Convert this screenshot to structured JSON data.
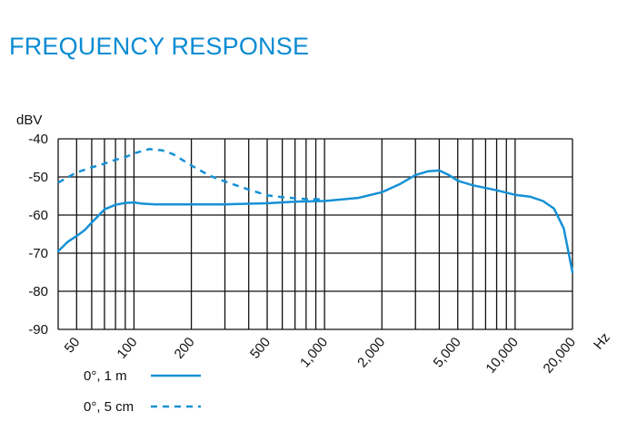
{
  "chart_data": {
    "type": "line",
    "title": "FREQUENCY RESPONSE",
    "ylabel": "dBV",
    "xlabel": "Hz",
    "x_scale": "log",
    "xlim": [
      40,
      20000
    ],
    "ylim": [
      -90,
      -40
    ],
    "grid": true,
    "y_ticks": [
      -40,
      -50,
      -60,
      -70,
      -80,
      -90
    ],
    "y_tick_labels": [
      "-40",
      "-50",
      "-60",
      "-70",
      "-80",
      "-90"
    ],
    "x_ticks": [
      50,
      100,
      200,
      500,
      1000,
      2000,
      5000,
      10000,
      20000
    ],
    "x_tick_labels": [
      "50",
      "100",
      "200",
      "500",
      "1,000",
      "2,000",
      "5,000",
      "10,000",
      "20,000"
    ],
    "x_gridlines": [
      40,
      50,
      60,
      70,
      80,
      90,
      100,
      200,
      300,
      400,
      500,
      600,
      700,
      800,
      900,
      1000,
      2000,
      3000,
      4000,
      5000,
      6000,
      7000,
      8000,
      9000,
      10000,
      20000
    ],
    "legend_placement": "bottom-left",
    "series": [
      {
        "name": "0°, 1 m",
        "color": "#1591d6",
        "style": "solid",
        "x": [
          40,
          45,
          50,
          55,
          60,
          70,
          80,
          90,
          100,
          110,
          130,
          200,
          300,
          500,
          700,
          1000,
          1500,
          2000,
          2500,
          3000,
          3500,
          4000,
          4500,
          5000,
          6000,
          8000,
          10000,
          12000,
          14000,
          16000,
          18000,
          20000
        ],
        "y": [
          -69.5,
          -67,
          -65.5,
          -64,
          -62,
          -58.5,
          -57.3,
          -56.8,
          -56.7,
          -57,
          -57.2,
          -57.2,
          -57.2,
          -56.9,
          -56.5,
          -56.3,
          -55.5,
          -54,
          -51.8,
          -49.5,
          -48.5,
          -48.3,
          -49.5,
          -51,
          -52.2,
          -53.5,
          -54.7,
          -55.2,
          -56.3,
          -58.3,
          -63.5,
          -75
        ]
      },
      {
        "name": "0°, 5 cm",
        "color": "#1591d6",
        "style": "dashed",
        "x": [
          40,
          50,
          60,
          70,
          80,
          90,
          100,
          120,
          140,
          160,
          200,
          250,
          300,
          400,
          500,
          600,
          700,
          800,
          900,
          1000
        ],
        "y": [
          -51.5,
          -48.8,
          -47.5,
          -46.5,
          -45.5,
          -44.8,
          -43.8,
          -42.7,
          -43,
          -44,
          -47,
          -49.7,
          -51.2,
          -53.3,
          -54.8,
          -55.3,
          -55.6,
          -55.8,
          -55.8,
          -56
        ]
      }
    ]
  }
}
